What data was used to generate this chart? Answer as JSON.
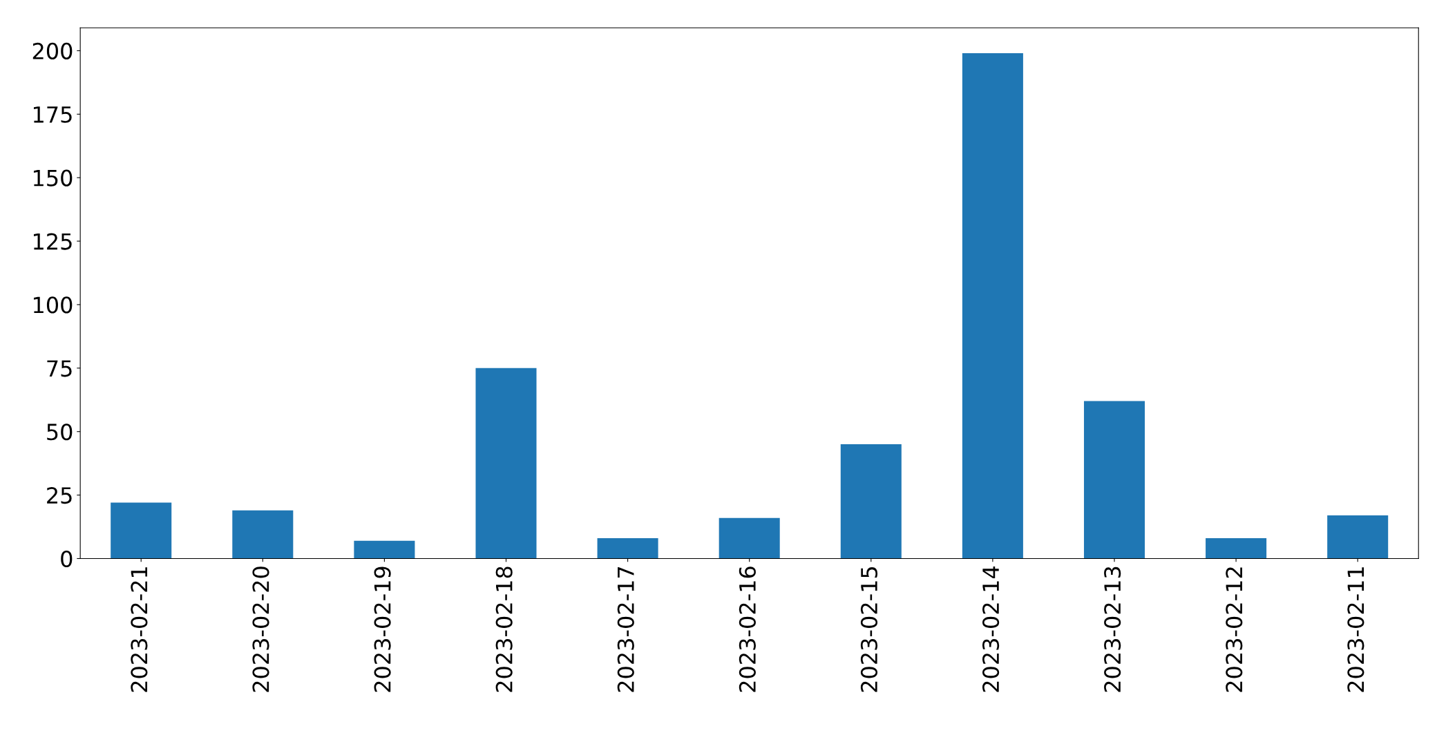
{
  "chart_data": {
    "type": "bar",
    "categories": [
      "2023-02-21",
      "2023-02-20",
      "2023-02-19",
      "2023-02-18",
      "2023-02-17",
      "2023-02-16",
      "2023-02-15",
      "2023-02-14",
      "2023-02-13",
      "2023-02-12",
      "2023-02-11"
    ],
    "values": [
      22,
      19,
      7,
      75,
      8,
      16,
      45,
      199,
      62,
      8,
      17
    ],
    "color": "#1f77b4",
    "ylim": [
      0,
      209
    ],
    "yticks": [
      0,
      25,
      50,
      75,
      100,
      125,
      150,
      175,
      200
    ],
    "grid": false,
    "legend": false
  }
}
